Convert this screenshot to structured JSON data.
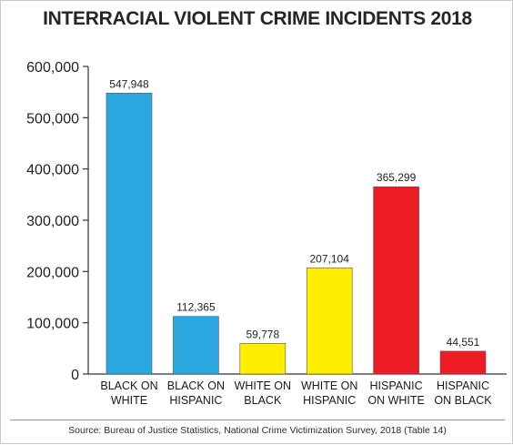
{
  "title": "INTERRACIAL VIOLENT CRIME INCIDENTS 2018",
  "source": "Source: Bureau of Justice Statistics, National Crime Victimization Survey, 2018 (Table 14)",
  "chart_data": {
    "type": "bar",
    "title": "INTERRACIAL VIOLENT CRIME INCIDENTS 2018",
    "xlabel": "",
    "ylabel": "",
    "ylim": [
      0,
      600000
    ],
    "yticks": [
      0,
      100000,
      200000,
      300000,
      400000,
      500000,
      600000
    ],
    "ytick_labels": [
      "0",
      "100,000",
      "200,000",
      "300,000",
      "400,000",
      "500,000",
      "600,000"
    ],
    "grid": false,
    "categories": [
      [
        "BLACK ON",
        "WHITE"
      ],
      [
        "BLACK ON",
        "HISPANIC"
      ],
      [
        "WHITE ON",
        "BLACK"
      ],
      [
        "WHITE ON",
        "HISPANIC"
      ],
      [
        "HISPANIC",
        "ON WHITE"
      ],
      [
        "HISPANIC",
        "ON BLACK"
      ]
    ],
    "values": [
      547948,
      112365,
      59778,
      207104,
      365299,
      44551
    ],
    "data_labels": [
      "547,948",
      "112,365",
      "59,778",
      "207,104",
      "365,299",
      "44,551"
    ],
    "colors": [
      "#29a8e0",
      "#29a8e0",
      "#ffee00",
      "#ffee00",
      "#ee1c24",
      "#ee1c24"
    ]
  }
}
